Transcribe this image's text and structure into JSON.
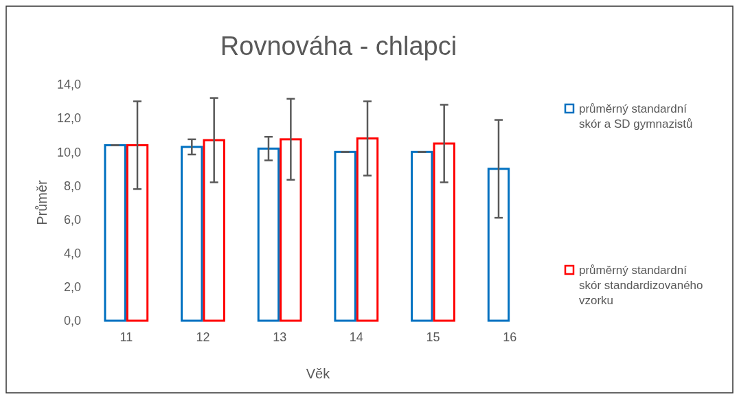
{
  "chart_data": {
    "type": "bar",
    "title": "Rovnováha - chlapci",
    "xlabel": "Věk",
    "ylabel": "Průměr",
    "categories": [
      "11",
      "12",
      "13",
      "14",
      "15",
      "16"
    ],
    "series": [
      {
        "name": "průměrný standardní skór a SD gymnazistů",
        "color": "#0070c0",
        "values": [
          10.4,
          10.3,
          10.2,
          10.0,
          10.0,
          9.0
        ],
        "errors": [
          0,
          0.45,
          0.7,
          0,
          0,
          2.9
        ]
      },
      {
        "name": "průměrný standardní skór standardizovaného vzorku",
        "color": "#ff0000",
        "values": [
          10.4,
          10.7,
          10.75,
          10.8,
          10.5,
          null
        ],
        "errors": [
          2.6,
          2.5,
          2.4,
          2.2,
          2.3,
          null
        ]
      }
    ],
    "ylim": [
      0,
      14
    ],
    "yticks": [
      {
        "value": 0,
        "label": "0,0"
      },
      {
        "value": 2,
        "label": "2,0"
      },
      {
        "value": 4,
        "label": "4,0"
      },
      {
        "value": 6,
        "label": "6,0"
      },
      {
        "value": 8,
        "label": "8,0"
      },
      {
        "value": 10,
        "label": "10,0"
      },
      {
        "value": 12,
        "label": "12,0"
      },
      {
        "value": 14,
        "label": "14,0"
      }
    ],
    "legend": "right",
    "grid": false
  }
}
